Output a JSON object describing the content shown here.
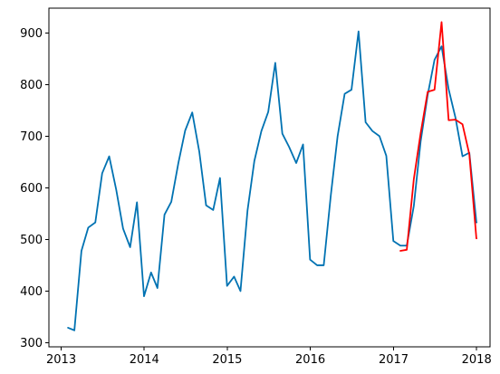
{
  "chart_data": {
    "type": "line",
    "title": "",
    "xlabel": "",
    "ylabel": "",
    "x_ticks": [
      "2013",
      "2014",
      "2015",
      "2016",
      "2017",
      "2018"
    ],
    "y_ticks": [
      300,
      400,
      500,
      600,
      700,
      800,
      900
    ],
    "xlim": [
      "2012-11-08",
      "2018-03-01"
    ],
    "ylim": [
      292,
      948
    ],
    "grid": false,
    "legend": "none",
    "series": [
      {
        "color": "#0072B2",
        "x": [
          "2013-01-31",
          "2013-02-28",
          "2013-03-31",
          "2013-04-30",
          "2013-05-31",
          "2013-06-30",
          "2013-07-31",
          "2013-08-31",
          "2013-09-30",
          "2013-10-31",
          "2013-11-30",
          "2013-12-31",
          "2014-01-31",
          "2014-02-28",
          "2014-03-31",
          "2014-04-30",
          "2014-05-31",
          "2014-06-30",
          "2014-07-31",
          "2014-08-31",
          "2014-09-30",
          "2014-10-31",
          "2014-11-30",
          "2014-12-31",
          "2015-01-31",
          "2015-02-28",
          "2015-03-31",
          "2015-04-30",
          "2015-05-31",
          "2015-06-30",
          "2015-07-31",
          "2015-08-31",
          "2015-09-30",
          "2015-10-31",
          "2015-11-30",
          "2015-12-31",
          "2016-01-31",
          "2016-02-29",
          "2016-03-31",
          "2016-04-30",
          "2016-05-31",
          "2016-06-30",
          "2016-07-31",
          "2016-08-31",
          "2016-09-30",
          "2016-10-31",
          "2016-11-30",
          "2016-12-31",
          "2017-01-31",
          "2017-02-28",
          "2017-03-31",
          "2017-04-30",
          "2017-05-31",
          "2017-06-30",
          "2017-07-31",
          "2017-08-31",
          "2017-09-30",
          "2017-10-31",
          "2017-11-30",
          "2017-12-31",
          "2018-01-01"
        ],
        "y": [
          329,
          324,
          478,
          523,
          533,
          628,
          661,
          596,
          521,
          485,
          572,
          390,
          436,
          406,
          548,
          573,
          648,
          711,
          746,
          670,
          566,
          557,
          619,
          410,
          428,
          400,
          556,
          652,
          710,
          747,
          842,
          705,
          679,
          648,
          684,
          461,
          450,
          450,
          585,
          700,
          782,
          790,
          903,
          727,
          710,
          700,
          662,
          497,
          488,
          488,
          565,
          690,
          780,
          848,
          874,
          791,
          736,
          661,
          668,
          533,
          533
        ]
      },
      {
        "color": "#FF0000",
        "x": [
          "2017-01-31",
          "2017-02-28",
          "2017-03-31",
          "2017-04-30",
          "2017-05-31",
          "2017-06-30",
          "2017-07-31",
          "2017-08-31",
          "2017-09-30",
          "2017-10-31",
          "2017-11-30",
          "2017-12-31",
          "2018-01-01"
        ],
        "y": [
          478,
          480,
          617,
          706,
          786,
          790,
          921,
          731,
          732,
          723,
          665,
          502,
          502
        ]
      }
    ]
  }
}
